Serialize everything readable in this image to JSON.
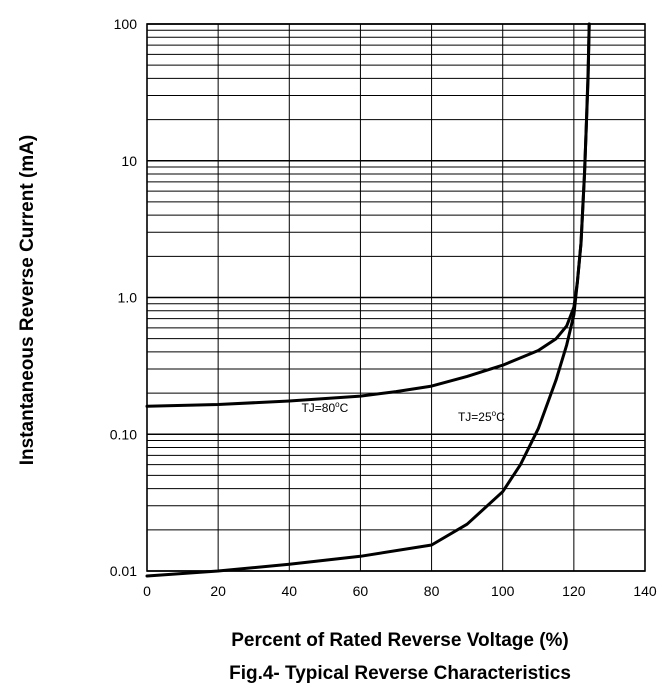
{
  "chart_data": {
    "type": "line",
    "title": "Fig.4- Typical Reverse Characteristics",
    "xlabel": "Percent of Rated Reverse Voltage (%)",
    "ylabel": "Instantaneous Reverse Current (mA)",
    "xlim": [
      0,
      140
    ],
    "ylim": [
      0.01,
      100
    ],
    "yscale": "log",
    "grid": true,
    "x_ticks": [
      {
        "value": 0,
        "label": "0"
      },
      {
        "value": 20,
        "label": "20"
      },
      {
        "value": 40,
        "label": "40"
      },
      {
        "value": 60,
        "label": "60"
      },
      {
        "value": 80,
        "label": "80"
      },
      {
        "value": 100,
        "label": "100"
      },
      {
        "value": 120,
        "label": "120"
      },
      {
        "value": 140,
        "label": "140"
      }
    ],
    "y_ticks": [
      {
        "value": 0.01,
        "label": "0.01"
      },
      {
        "value": 0.1,
        "label": "0.10"
      },
      {
        "value": 1,
        "label": "1.0"
      },
      {
        "value": 10,
        "label": "10"
      },
      {
        "value": 100,
        "label": "100"
      }
    ],
    "series": [
      {
        "x": [
          0,
          20,
          40,
          60,
          70,
          80,
          90,
          100,
          110,
          115,
          118,
          120,
          121,
          122,
          123,
          123.5,
          124,
          124.3
        ],
        "y": [
          0.16,
          0.165,
          0.175,
          0.19,
          0.205,
          0.225,
          0.265,
          0.32,
          0.41,
          0.5,
          0.62,
          0.85,
          1.3,
          2.5,
          8,
          18,
          45,
          100
        ]
      },
      {
        "x": [
          0,
          20,
          40,
          60,
          80,
          90,
          100,
          105,
          110,
          115,
          118,
          120,
          121,
          122,
          123,
          124,
          124.3
        ],
        "y": [
          0.0092,
          0.01,
          0.0112,
          0.0128,
          0.0155,
          0.022,
          0.038,
          0.06,
          0.11,
          0.25,
          0.45,
          0.75,
          1.3,
          2.5,
          8,
          40,
          100
        ]
      }
    ],
    "annotations": [
      {
        "text": "TJ=80",
        "sup": "o",
        "suffix": "C",
        "x": 50,
        "y": 0.145
      },
      {
        "text": "TJ=25",
        "sup": "o",
        "suffix": "C",
        "x": 94,
        "y": 0.125
      }
    ]
  }
}
